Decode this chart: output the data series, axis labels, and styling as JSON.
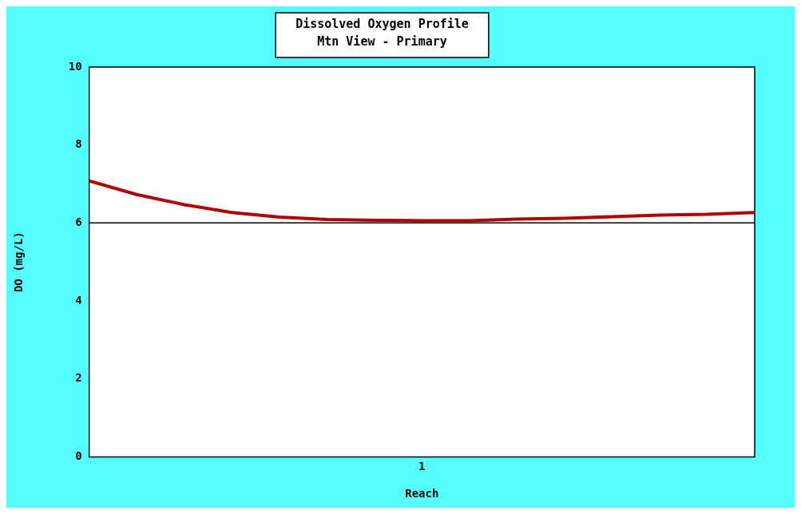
{
  "chart_data": {
    "type": "line",
    "title": "Dissolved Oxygen Profile",
    "subtitle": "Mtn View - Primary",
    "xlabel": "Reach",
    "ylabel": "DO (mg/L)",
    "categories": [
      null,
      null,
      null,
      null,
      null,
      null,
      null,
      null,
      null,
      null,
      null,
      null,
      null,
      null,
      null
    ],
    "series": [
      {
        "color": "#b00000",
        "values": [
          7.08,
          6.73,
          6.47,
          6.27,
          6.15,
          6.09,
          6.07,
          6.06,
          6.06,
          6.1,
          6.12,
          6.16,
          6.2,
          6.22,
          6.27
        ]
      }
    ],
    "ylim": [
      0,
      10
    ],
    "yticks": [
      0,
      2,
      4,
      6,
      8,
      10
    ],
    "annotations": [
      "1"
    ],
    "ref_lines": [
      {
        "axis": "y",
        "value": 6,
        "color": "#000000"
      }
    ],
    "grid": false,
    "legend": false,
    "marker": "none",
    "line_style": "solid"
  }
}
